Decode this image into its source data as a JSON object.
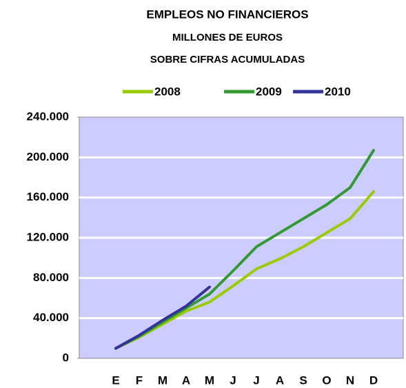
{
  "chart_data": {
    "type": "line",
    "title": "EMPLEOS NO FINANCIEROS",
    "subtitle": [
      "MILLONES DE EUROS",
      "SOBRE CIFRAS ACUMULADAS"
    ],
    "categories": [
      "E",
      "F",
      "M",
      "A",
      "M",
      "J",
      "J",
      "A",
      "S",
      "O",
      "N",
      "D"
    ],
    "series": [
      {
        "name": "2008",
        "color": "#99cc00",
        "values": [
          10000,
          21000,
          34000,
          47000,
          56000,
          72000,
          89000,
          99000,
          111000,
          125000,
          139000,
          166000
        ]
      },
      {
        "name": "2009",
        "color": "#339933",
        "values": [
          10000,
          22000,
          36000,
          50000,
          64000,
          87000,
          111000,
          125000,
          139000,
          153000,
          170000,
          207000
        ]
      },
      {
        "name": "2010",
        "color": "#333399",
        "values": [
          10000,
          23000,
          38000,
          52000,
          71000,
          null,
          null,
          null,
          null,
          null,
          null,
          null
        ]
      }
    ],
    "ylim": [
      0,
      240000
    ],
    "yticks": [
      0,
      {
        "value": 40000,
        "label": "40.000"
      },
      {
        "value": 80000,
        "label": "80.000"
      },
      {
        "value": 120000,
        "label": "120.000"
      },
      {
        "value": 160000,
        "label": "160.000"
      },
      {
        "value": 200000,
        "label": "200.000"
      },
      {
        "value": 240000,
        "label": "240.000"
      }
    ],
    "grid": true,
    "plot_background": "#ccccff",
    "legend": "top"
  }
}
